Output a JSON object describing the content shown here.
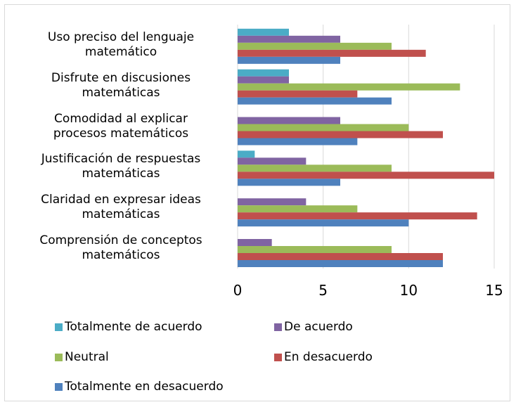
{
  "chart_data": {
    "type": "bar",
    "orientation": "horizontal",
    "categories": [
      "Comprensión de conceptos\nmatemáticos",
      "Claridad en expresar ideas\nmatemáticas",
      "Justificación de respuestas\nmatemáticas",
      "Comodidad al explicar\nprocesos matemáticos",
      "Disfrute en discusiones\nmatemáticas",
      "Uso preciso del lenguaje\nmatemático"
    ],
    "series": [
      {
        "name": "Totalmente de acuerdo",
        "color": "#4bacc6",
        "values": [
          0,
          0,
          1,
          0,
          3,
          3
        ]
      },
      {
        "name": "De acuerdo",
        "color": "#8064a2",
        "values": [
          2,
          4,
          4,
          6,
          3,
          6
        ]
      },
      {
        "name": "Neutral",
        "color": "#9bbb59",
        "values": [
          9,
          7,
          9,
          10,
          13,
          9
        ]
      },
      {
        "name": "En desacuerdo",
        "color": "#c0504d",
        "values": [
          12,
          14,
          15,
          12,
          7,
          11
        ]
      },
      {
        "name": "Totalmente en desacuerdo",
        "color": "#4f81bd",
        "values": [
          12,
          10,
          6,
          7,
          9,
          6
        ]
      }
    ],
    "xlim": [
      0,
      15
    ],
    "xticks": [
      0,
      5,
      10,
      15
    ],
    "grid": true,
    "legend": "bottom"
  }
}
